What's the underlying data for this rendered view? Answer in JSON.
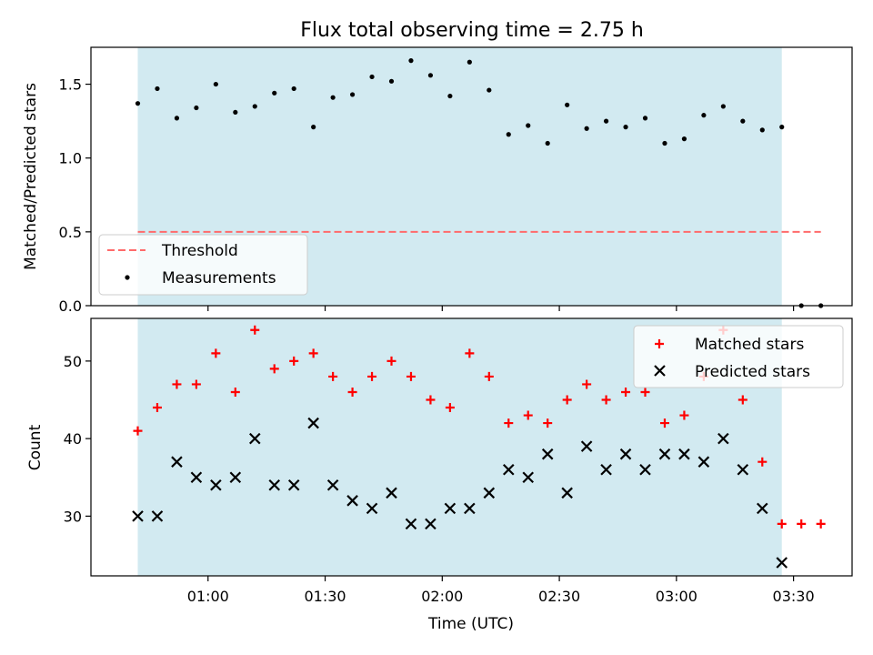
{
  "chart_data": [
    {
      "type": "scatter",
      "title": "Flux total observing time = 2.75 h",
      "ylabel": "Matched/Predicted stars",
      "xlabel": "",
      "ylim": [
        0,
        1.75
      ],
      "yticks": [
        0.0,
        0.5,
        1.0,
        1.5
      ],
      "ytick_labels": [
        "0.0",
        "0.5",
        "1.0",
        "1.5"
      ],
      "shaded_span": [
        "00:42",
        "03:27"
      ],
      "shade_color": "#add8e6",
      "legend_position": "lower-left",
      "threshold": {
        "name": "Threshold",
        "value": 0.5,
        "x_range": [
          "00:42",
          "03:37"
        ],
        "color": "#ff6b6b"
      },
      "series": [
        {
          "name": "Measurements",
          "color": "#000000",
          "marker": "dot",
          "x": [
            "00:42",
            "00:47",
            "00:52",
            "00:57",
            "01:02",
            "01:07",
            "01:12",
            "01:17",
            "01:22",
            "01:27",
            "01:32",
            "01:37",
            "01:42",
            "01:47",
            "01:52",
            "01:57",
            "02:02",
            "02:07",
            "02:12",
            "02:17",
            "02:22",
            "02:27",
            "02:32",
            "02:37",
            "02:42",
            "02:47",
            "02:52",
            "02:57",
            "03:02",
            "03:07",
            "03:12",
            "03:17",
            "03:22",
            "03:27",
            "03:32",
            "03:37"
          ],
          "y": [
            1.37,
            1.47,
            1.27,
            1.34,
            1.5,
            1.31,
            1.35,
            1.44,
            1.47,
            1.21,
            1.41,
            1.43,
            1.55,
            1.52,
            1.66,
            1.56,
            1.42,
            1.65,
            1.46,
            1.16,
            1.22,
            1.1,
            1.36,
            1.2,
            1.25,
            1.21,
            1.27,
            1.1,
            1.13,
            1.29,
            1.35,
            1.25,
            1.19,
            1.21,
            0.0,
            0.0
          ]
        }
      ]
    },
    {
      "type": "scatter",
      "title": "",
      "ylabel": "Count",
      "xlabel": "Time (UTC)",
      "ylim": [
        22.3,
        55.5
      ],
      "yticks": [
        30,
        40,
        50
      ],
      "ytick_labels": [
        "30",
        "40",
        "50"
      ],
      "xticks": [
        "01:00",
        "01:30",
        "02:00",
        "02:30",
        "03:00",
        "03:30"
      ],
      "xlim": [
        "00:30",
        "03:45"
      ],
      "shaded_span": [
        "00:42",
        "03:27"
      ],
      "legend_position": "upper-right",
      "series": [
        {
          "name": "Matched stars",
          "color": "#ff0000",
          "marker": "plus",
          "x": [
            "00:42",
            "00:47",
            "00:52",
            "00:57",
            "01:02",
            "01:07",
            "01:12",
            "01:17",
            "01:22",
            "01:27",
            "01:32",
            "01:37",
            "01:42",
            "01:47",
            "01:52",
            "01:57",
            "02:02",
            "02:07",
            "02:12",
            "02:17",
            "02:22",
            "02:27",
            "02:32",
            "02:37",
            "02:42",
            "02:47",
            "02:52",
            "02:57",
            "03:02",
            "03:07",
            "03:12",
            "03:17",
            "03:22",
            "03:27",
            "03:32",
            "03:37"
          ],
          "y": [
            41,
            44,
            47,
            47,
            51,
            46,
            54,
            49,
            50,
            51,
            48,
            46,
            48,
            50,
            48,
            45,
            44,
            51,
            48,
            42,
            43,
            42,
            45,
            47,
            45,
            46,
            46,
            42,
            43,
            48,
            54,
            45,
            37,
            29,
            29,
            29
          ]
        },
        {
          "name": "Predicted stars",
          "color": "#000000",
          "marker": "x",
          "x": [
            "00:42",
            "00:47",
            "00:52",
            "00:57",
            "01:02",
            "01:07",
            "01:12",
            "01:17",
            "01:22",
            "01:27",
            "01:32",
            "01:37",
            "01:42",
            "01:47",
            "01:52",
            "01:57",
            "02:02",
            "02:07",
            "02:12",
            "02:17",
            "02:22",
            "02:27",
            "02:32",
            "02:37",
            "02:42",
            "02:47",
            "02:52",
            "02:57",
            "03:02",
            "03:07",
            "03:12",
            "03:17",
            "03:22",
            "03:27"
          ],
          "y": [
            30,
            30,
            37,
            35,
            34,
            35,
            40,
            34,
            34,
            42,
            34,
            32,
            31,
            33,
            29,
            29,
            31,
            31,
            33,
            36,
            35,
            38,
            33,
            39,
            36,
            38,
            36,
            38,
            38,
            37,
            40,
            36,
            31,
            24
          ]
        }
      ]
    }
  ]
}
